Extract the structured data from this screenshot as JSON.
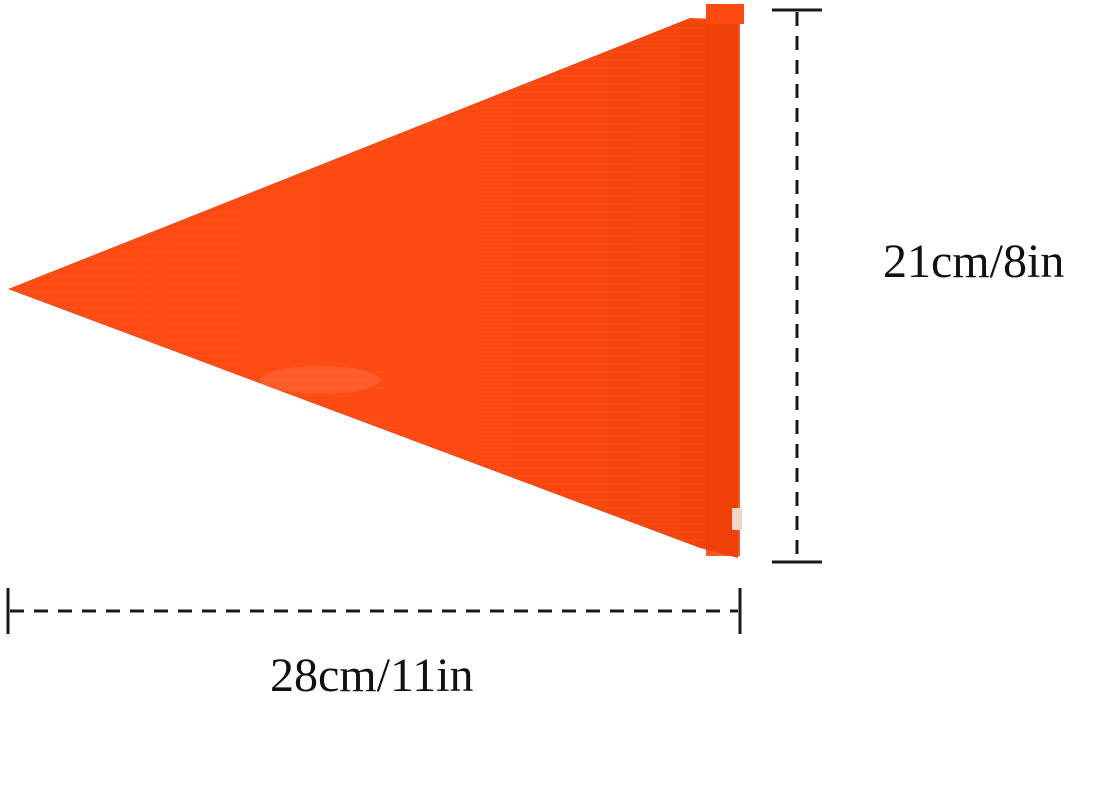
{
  "colors": {
    "flag": "#ff4a12",
    "flag_shadow": "#e83b05",
    "flag_highlight": "#ff6a38",
    "dimension_line": "#1a1a1a"
  },
  "dimensions": {
    "height_label": "21cm/8in",
    "width_label": "28cm/11in"
  }
}
